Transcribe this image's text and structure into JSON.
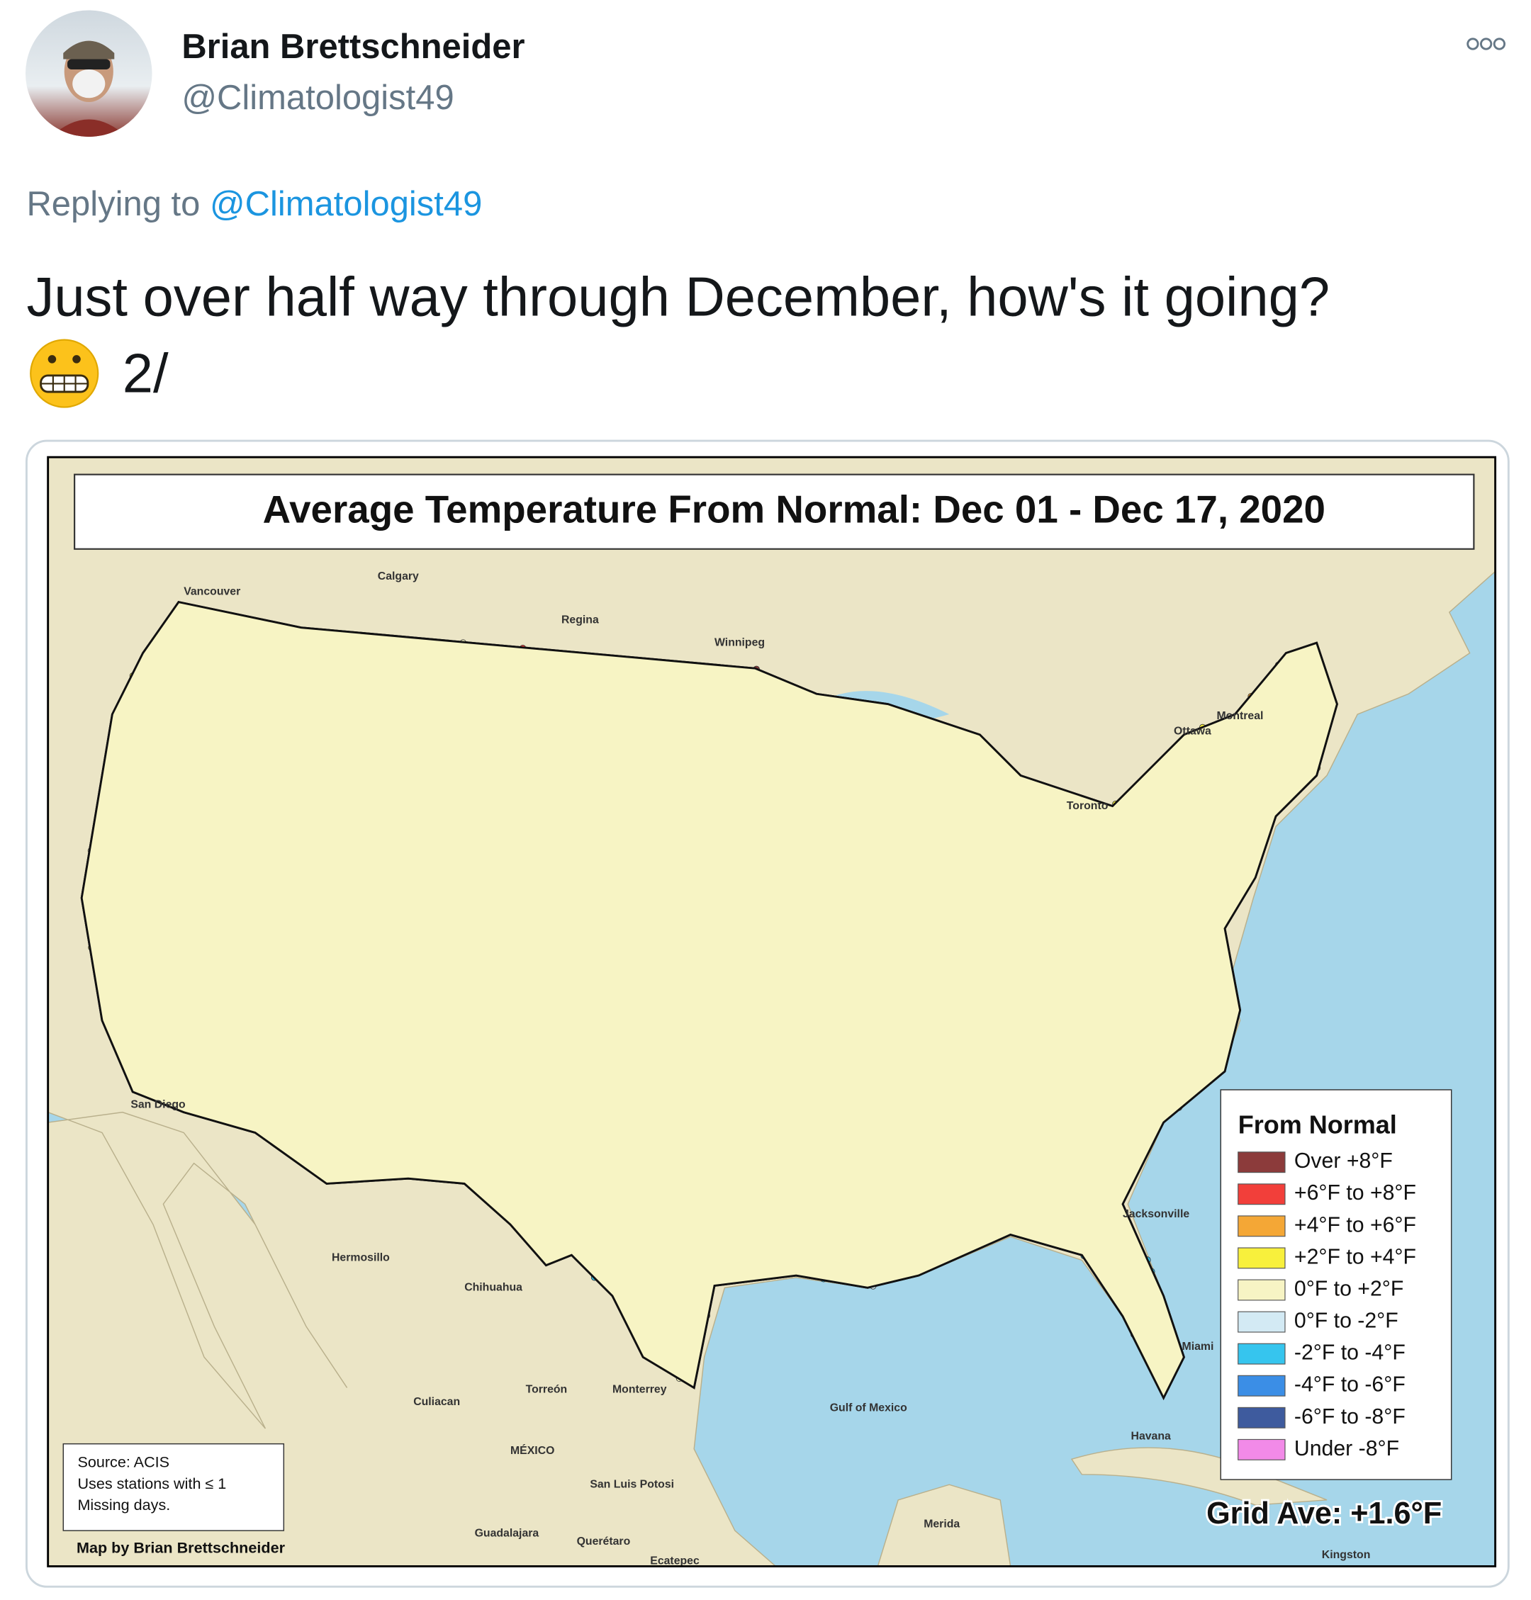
{
  "header": {
    "name": "Brian Brettschneider",
    "handle": "@Climatologist49"
  },
  "reply": {
    "prefix": "Replying to",
    "handle": "@Climatologist49"
  },
  "tweet": {
    "text": "Just over half way through December, how's it going?",
    "suffix": "2/"
  },
  "map": {
    "title": "Average Temperature From Normal: Dec 01 - Dec 17, 2020",
    "legend": {
      "title": "From Normal",
      "items": [
        {
          "label": "Over +8°F",
          "color": "#8c3b3b"
        },
        {
          "label": "+6°F to +8°F",
          "color": "#f23f3a"
        },
        {
          "label": "+4°F to +6°F",
          "color": "#f4a736"
        },
        {
          "label": "+2°F to +4°F",
          "color": "#f8f03c"
        },
        {
          "label": "0°F to +2°F",
          "color": "#f7f4c4"
        },
        {
          "label": "0°F to -2°F",
          "color": "#d3eaf4"
        },
        {
          "label": "-2°F to -4°F",
          "color": "#36c5ee"
        },
        {
          "label": "-4°F to -6°F",
          "color": "#3b8ee6"
        },
        {
          "label": "-6°F to -8°F",
          "color": "#3e5b9e"
        },
        {
          "label": "Under -8°F",
          "color": "#f28ae8"
        }
      ]
    },
    "source": [
      "Source: ACIS",
      "Uses stations with ≤ 1",
      "Missing days."
    ],
    "credit": "Map by Brian Brettschneider",
    "grid_average": "Grid Ave: +1.6°F",
    "places": [
      "Calgary",
      "Regina",
      "Winnipeg",
      "Vancouver",
      "Toronto",
      "Ottawa",
      "Montreal",
      "Hermosillo",
      "Chihuahua",
      "Culiacan",
      "Torreón",
      "Monterrey",
      "MÉXICO",
      "San Luis Potosi",
      "Guadalajara",
      "Querétaro",
      "Ecatepec",
      "Merida",
      "Havana",
      "Kingston",
      "Gulf of Mexico",
      "Jacksonville",
      "Miami",
      "San Diego"
    ]
  }
}
